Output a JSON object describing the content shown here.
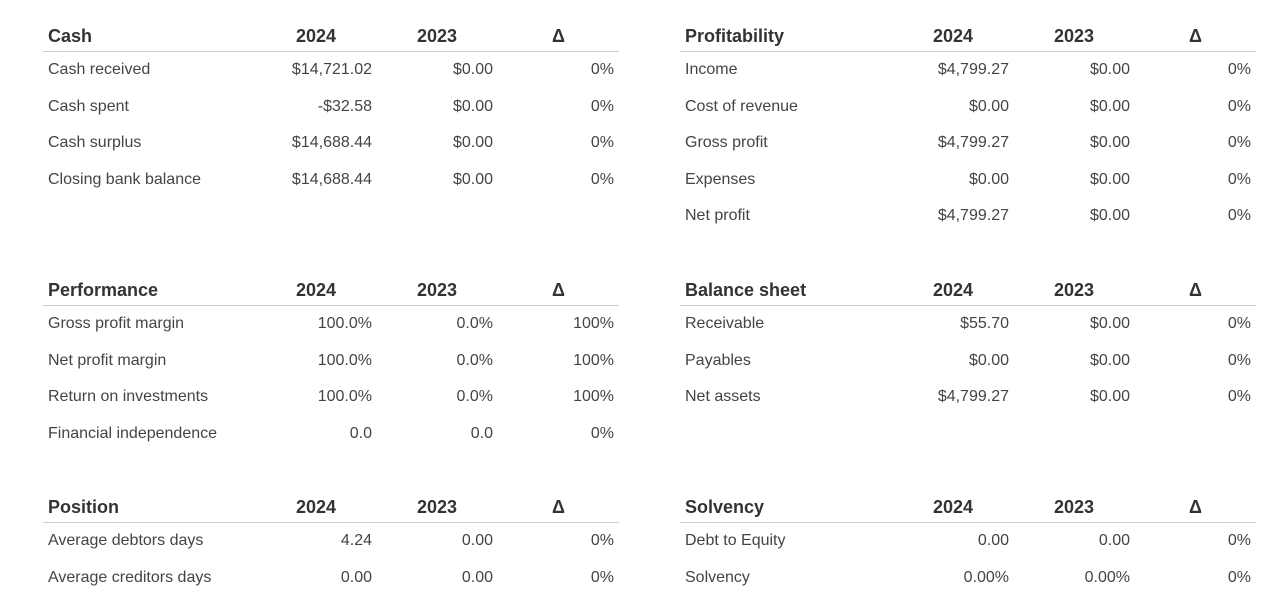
{
  "sections": [
    {
      "title": "Cash",
      "col1": "2024",
      "col2": "2023",
      "col3": "Δ",
      "rows": [
        {
          "label": "Cash received",
          "v2024": "$14,721.02",
          "v2023": "$0.00",
          "delta": "0%"
        },
        {
          "label": "Cash spent",
          "v2024": "-$32.58",
          "v2023": "$0.00",
          "delta": "0%"
        },
        {
          "label": "Cash surplus",
          "v2024": "$14,688.44",
          "v2023": "$0.00",
          "delta": "0%"
        },
        {
          "label": "Closing bank balance",
          "v2024": "$14,688.44",
          "v2023": "$0.00",
          "delta": "0%"
        }
      ]
    },
    {
      "title": "Profitability",
      "col1": "2024",
      "col2": "2023",
      "col3": "Δ",
      "rows": [
        {
          "label": "Income",
          "v2024": "$4,799.27",
          "v2023": "$0.00",
          "delta": "0%"
        },
        {
          "label": "Cost of revenue",
          "v2024": "$0.00",
          "v2023": "$0.00",
          "delta": "0%"
        },
        {
          "label": "Gross profit",
          "v2024": "$4,799.27",
          "v2023": "$0.00",
          "delta": "0%"
        },
        {
          "label": "Expenses",
          "v2024": "$0.00",
          "v2023": "$0.00",
          "delta": "0%"
        },
        {
          "label": "Net profit",
          "v2024": "$4,799.27",
          "v2023": "$0.00",
          "delta": "0%"
        }
      ]
    },
    {
      "title": "Performance",
      "col1": "2024",
      "col2": "2023",
      "col3": "Δ",
      "rows": [
        {
          "label": "Gross profit margin",
          "v2024": "100.0%",
          "v2023": "0.0%",
          "delta": "100%"
        },
        {
          "label": "Net profit margin",
          "v2024": "100.0%",
          "v2023": "0.0%",
          "delta": "100%"
        },
        {
          "label": "Return on investments",
          "v2024": "100.0%",
          "v2023": "0.0%",
          "delta": "100%"
        },
        {
          "label": "Financial independence",
          "v2024": "0.0",
          "v2023": "0.0",
          "delta": "0%"
        }
      ]
    },
    {
      "title": "Balance sheet",
      "col1": "2024",
      "col2": "2023",
      "col3": "Δ",
      "rows": [
        {
          "label": "Receivable",
          "v2024": "$55.70",
          "v2023": "$0.00",
          "delta": "0%"
        },
        {
          "label": "Payables",
          "v2024": "$0.00",
          "v2023": "$0.00",
          "delta": "0%"
        },
        {
          "label": "Net assets",
          "v2024": "$4,799.27",
          "v2023": "$0.00",
          "delta": "0%"
        }
      ]
    },
    {
      "title": "Position",
      "col1": "2024",
      "col2": "2023",
      "col3": "Δ",
      "rows": [
        {
          "label": "Average debtors days",
          "v2024": "4.24",
          "v2023": "0.00",
          "delta": "0%"
        },
        {
          "label": "Average creditors days",
          "v2024": "0.00",
          "v2023": "0.00",
          "delta": "0%"
        }
      ]
    },
    {
      "title": "Solvency",
      "col1": "2024",
      "col2": "2023",
      "col3": "Δ",
      "rows": [
        {
          "label": "Debt to Equity",
          "v2024": "0.00",
          "v2023": "0.00",
          "delta": "0%"
        },
        {
          "label": "Solvency",
          "v2024": "0.00%",
          "v2023": "0.00%",
          "delta": "0%"
        }
      ]
    }
  ]
}
